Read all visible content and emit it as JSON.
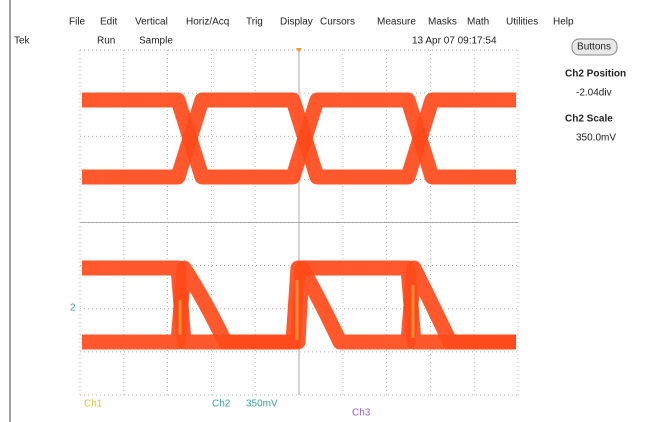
{
  "menu": [
    "File",
    "Edit",
    "Vertical",
    "Horiz/Acq",
    "Trig",
    "Display",
    "Cursors",
    "Measure",
    "Masks",
    "Math",
    "Utilities",
    "Help"
  ],
  "status": {
    "brand": "Tek",
    "state": "Run",
    "mode": "Sample",
    "datetime": "13 Apr 07 09:17:54"
  },
  "buttons": "Buttons",
  "side_panel": {
    "position_title": "Ch2 Position",
    "position_value": "-2.04div",
    "scale_title": "Ch2 Scale",
    "scale_value": "350.0mV"
  },
  "channel_marker": "2",
  "readout": {
    "ch1": "Ch1",
    "ch2": "Ch2",
    "ch2_scale": "350mV",
    "ch3": "Ch3"
  }
}
